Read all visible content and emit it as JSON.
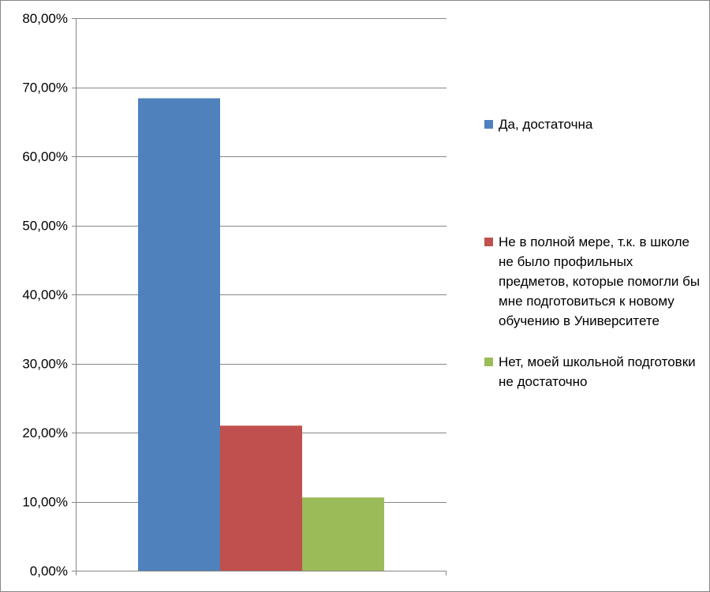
{
  "chart_data": {
    "type": "bar",
    "categories": [
      ""
    ],
    "series": [
      {
        "name": "Да, достаточна",
        "values": [
          68.4
        ],
        "color": "#4F81BD"
      },
      {
        "name": "Не в полной мере, т.к. в школе не было профильных предметов, которые помогли бы мне подготовиться к новому обучению в Университете",
        "values": [
          21.0
        ],
        "color": "#C0504D"
      },
      {
        "name": "Нет, моей школьной подготовки не достаточно",
        "values": [
          10.6
        ],
        "color": "#9BBB59"
      }
    ],
    "ylim": [
      0,
      80
    ],
    "yticks": [
      0,
      10,
      20,
      30,
      40,
      50,
      60,
      70,
      80
    ],
    "ytick_labels": [
      "0,00%",
      "10,00%",
      "20,00%",
      "30,00%",
      "40,00%",
      "50,00%",
      "60,00%",
      "70,00%",
      "80,00%"
    ],
    "grid": true,
    "legend_position": "right",
    "title": "",
    "xlabel": "",
    "ylabel": ""
  }
}
